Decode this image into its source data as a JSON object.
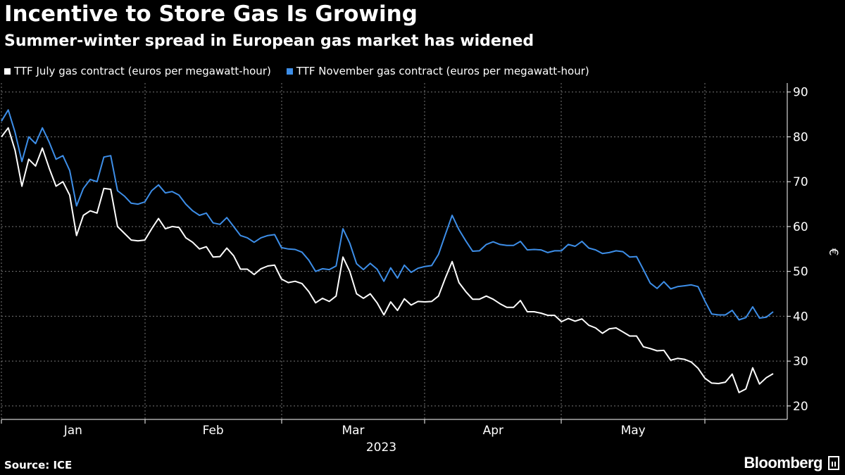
{
  "header": {
    "title": "Incentive to Store Gas Is Growing",
    "subtitle": "Summer-winter spread in European gas market has widened"
  },
  "footer": {
    "source": "Source: ICE",
    "brand": "Bloomberg"
  },
  "colors": {
    "background": "#000000",
    "july": "#ffffff",
    "november": "#3d8ee8",
    "grid": "#777777"
  },
  "chart_data": {
    "type": "line",
    "legend": [
      {
        "label": "TTF July gas contract (euros per megawatt-hour)",
        "color": "#ffffff"
      },
      {
        "label": "TTF November gas contract (euros per megawatt-hour)",
        "color": "#3d8ee8"
      }
    ],
    "y_axis": {
      "label": "€",
      "position": "right",
      "range": [
        17,
        92
      ],
      "ticks": [
        20,
        30,
        40,
        50,
        60,
        70,
        80,
        90
      ]
    },
    "x_axis": {
      "month_labels": [
        "Jan",
        "Feb",
        "Mar",
        "Apr",
        "May"
      ],
      "year_label": "2023"
    },
    "grid": true,
    "series": [
      {
        "name": "TTF July gas contract (euros per megawatt-hour)",
        "color": "#ffffff",
        "values": [
          80,
          82,
          77,
          69,
          75,
          73.5,
          77.5,
          73,
          69,
          70,
          67,
          58,
          62.5,
          63.5,
          63,
          68.5,
          68.3,
          60,
          58.5,
          57,
          56.8,
          57,
          59.5,
          61.8,
          59.5,
          60,
          59.8,
          57.5,
          56.5,
          55,
          55.5,
          53.2,
          53.3,
          55.2,
          53.5,
          50.5,
          50.5,
          49.3,
          50.6,
          51.2,
          51.4,
          48.3,
          47.5,
          47.8,
          47.3,
          45.5,
          43,
          44,
          43.3,
          44.5,
          53.2,
          50,
          45,
          44,
          45,
          43,
          40.3,
          43.2,
          41.3,
          43.9,
          42.5,
          43.3,
          43.2,
          43.3,
          44.5,
          48.5,
          52.2,
          47.5,
          45.5,
          43.8,
          43.8,
          44.5,
          43.8,
          42.8,
          42,
          42,
          43.5,
          41,
          41,
          40.7,
          40.2,
          40.2,
          38.8,
          39.5,
          38.9,
          39.4,
          38,
          37.4,
          36.2,
          37.2,
          37.4,
          36.5,
          35.6,
          35.6,
          33.2,
          32.8,
          32.3,
          32.4,
          30.2,
          30.6,
          30.4,
          29.8,
          28.4,
          26.2,
          25.1,
          25,
          25.3,
          27.1,
          23,
          23.8,
          28.5,
          24.9,
          26.3,
          27.2
        ]
      },
      {
        "name": "TTF November gas contract (euros per megawatt-hour)",
        "color": "#3d8ee8",
        "values": [
          83.5,
          86,
          81,
          74.5,
          80,
          78.5,
          82,
          78.8,
          75,
          75.8,
          72.5,
          64.6,
          68.5,
          70.5,
          70,
          75.5,
          75.8,
          68,
          66.8,
          65.2,
          65,
          65.5,
          68,
          69.3,
          67.5,
          67.8,
          67,
          65,
          63.5,
          62.5,
          63,
          60.8,
          60.5,
          62,
          60,
          58,
          57.5,
          56.5,
          57.5,
          58,
          58.2,
          55.3,
          55,
          54.9,
          54.3,
          52.5,
          50,
          50.6,
          50.4,
          51.2,
          59.5,
          56.3,
          51.7,
          50.4,
          51.8,
          50.5,
          47.8,
          50.8,
          48.5,
          51.4,
          49.8,
          50.7,
          51.1,
          51.3,
          53.8,
          58.2,
          62.5,
          59.3,
          56.8,
          54.5,
          54.6,
          56,
          56.6,
          56,
          55.8,
          55.8,
          56.7,
          54.8,
          54.9,
          54.8,
          54.2,
          54.6,
          54.6,
          56,
          55.6,
          56.7,
          55.2,
          54.8,
          54,
          54.2,
          54.6,
          54.4,
          53.2,
          53.3,
          50.4,
          47.4,
          46.2,
          47.7,
          46.1,
          46.6,
          46.8,
          47,
          46.6,
          43.4,
          40.5,
          40.3,
          40.3,
          41.3,
          39.2,
          39.7,
          42.1,
          39.6,
          39.8,
          41
        ]
      }
    ]
  }
}
